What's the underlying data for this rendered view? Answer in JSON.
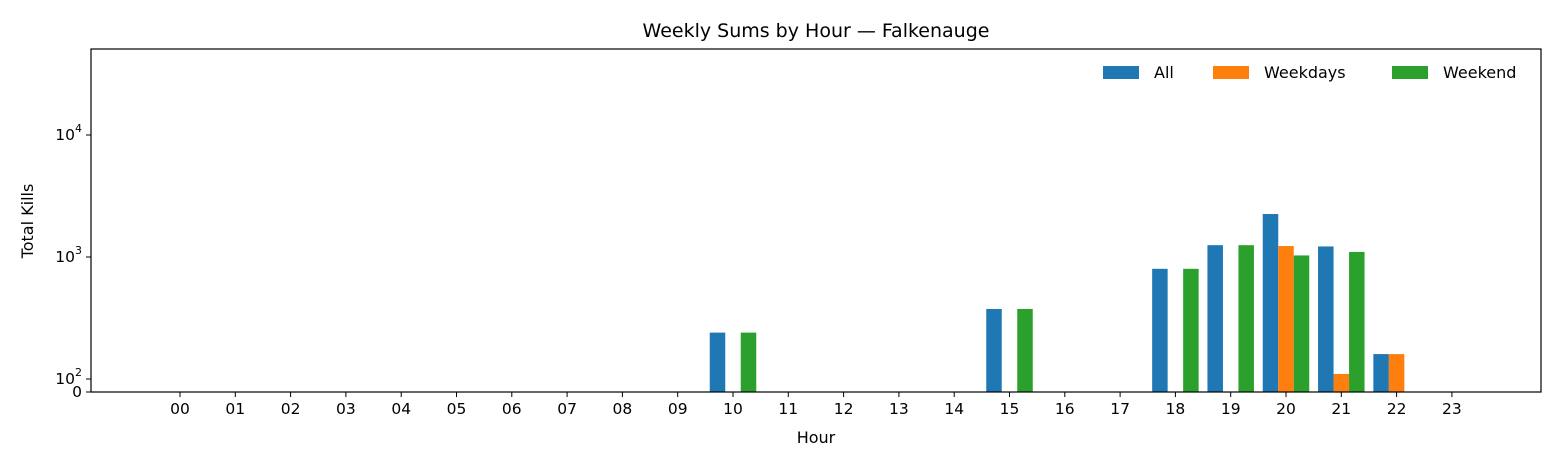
{
  "chart_data": {
    "type": "bar",
    "title": "Weekly Sums by Hour — Falkenauge",
    "xlabel": "Hour",
    "ylabel": "Total Kills",
    "yscale": "log",
    "ylim": [
      0,
      50000
    ],
    "y_ticks": [
      {
        "value": 0,
        "label": "0"
      },
      {
        "value": 100,
        "base": "10",
        "exp": "2"
      },
      {
        "value": 1000,
        "base": "10",
        "exp": "3"
      },
      {
        "value": 10000,
        "base": "10",
        "exp": "4"
      }
    ],
    "categories": [
      "00",
      "01",
      "02",
      "03",
      "04",
      "05",
      "06",
      "07",
      "08",
      "09",
      "10",
      "11",
      "12",
      "13",
      "14",
      "15",
      "16",
      "17",
      "18",
      "19",
      "20",
      "21",
      "22",
      "23"
    ],
    "grid": false,
    "legend_position": "top-right",
    "series": [
      {
        "name": "All",
        "color": "#1f77b4",
        "values": [
          0,
          0,
          0,
          0,
          0,
          0,
          0,
          0,
          0,
          0,
          240,
          0,
          0,
          0,
          0,
          375,
          0,
          0,
          800,
          1250,
          2250,
          1220,
          160,
          0
        ]
      },
      {
        "name": "Weekdays",
        "color": "#ff7f0e",
        "values": [
          0,
          0,
          0,
          0,
          0,
          0,
          0,
          0,
          0,
          0,
          0,
          0,
          0,
          0,
          0,
          0,
          0,
          0,
          0,
          0,
          1230,
          110,
          160,
          0
        ]
      },
      {
        "name": "Weekend",
        "color": "#2ca02c",
        "values": [
          0,
          0,
          0,
          0,
          0,
          0,
          0,
          0,
          0,
          0,
          240,
          0,
          0,
          0,
          0,
          375,
          0,
          0,
          800,
          1250,
          1030,
          1100,
          0,
          0
        ]
      }
    ]
  }
}
